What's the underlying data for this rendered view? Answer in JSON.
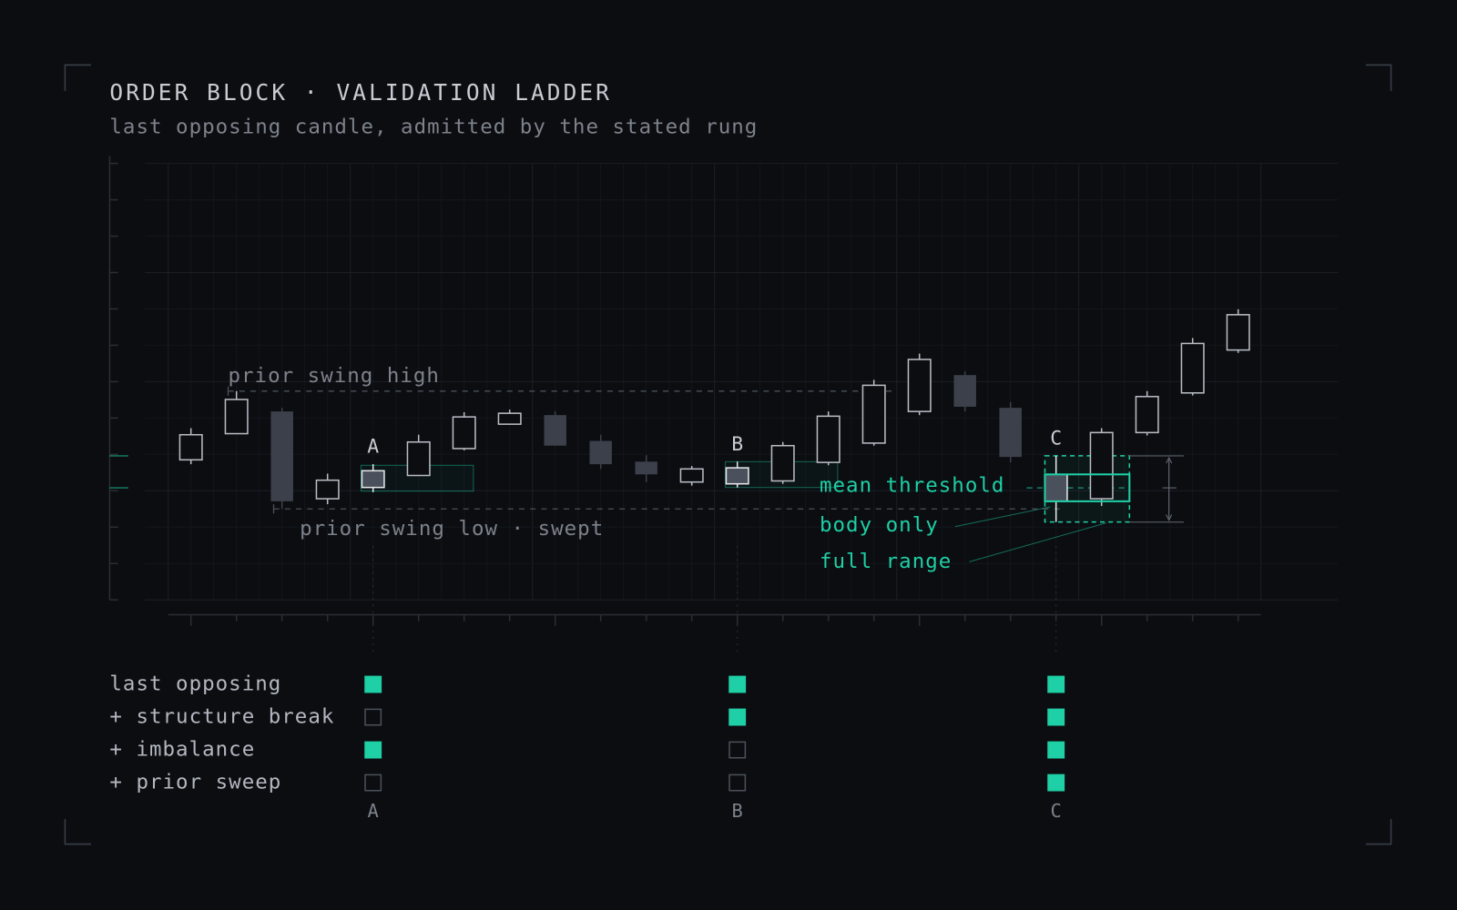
{
  "chart_data": {
    "type": "candlestick",
    "title": "ORDER BLOCK · VALIDATION LADDER",
    "subtitle": "last opposing candle, admitted by the stated rung",
    "categories": [
      null,
      null,
      null,
      null,
      "A",
      null,
      null,
      null,
      null,
      null,
      null,
      null,
      "B",
      null,
      null,
      null,
      null,
      null,
      null,
      "C",
      null,
      null,
      null,
      null
    ],
    "open": [
      3.85,
      4.57,
      5.18,
      2.78,
      3.55,
      3.42,
      4.16,
      4.83,
      5.08,
      4.37,
      3.8,
      3.24,
      3.63,
      3.27,
      3.78,
      4.31,
      5.18,
      6.18,
      5.28,
      3.45,
      2.78,
      4.6,
      5.69,
      6.87
    ],
    "high": [
      4.72,
      5.74,
      5.28,
      3.47,
      3.73,
      4.54,
      5.16,
      5.23,
      5.18,
      4.54,
      3.98,
      3.68,
      3.8,
      4.34,
      5.18,
      6.05,
      6.77,
      6.28,
      5.44,
      3.96,
      4.72,
      5.74,
      7.2,
      7.99
    ],
    "low": [
      3.73,
      4.57,
      2.5,
      2.63,
      2.96,
      3.42,
      4.11,
      4.83,
      4.24,
      3.6,
      3.24,
      3.14,
      3.09,
      3.19,
      3.7,
      4.24,
      5.08,
      5.18,
      3.78,
      2.14,
      2.58,
      4.52,
      5.62,
      6.79
    ],
    "close": [
      4.54,
      5.51,
      2.71,
      3.29,
      3.09,
      4.34,
      5.03,
      5.13,
      4.24,
      3.73,
      3.45,
      3.6,
      3.19,
      4.24,
      5.05,
      5.9,
      6.61,
      5.31,
      3.93,
      2.71,
      4.6,
      5.59,
      7.05,
      7.84
    ],
    "ylim": [
      0,
      12
    ],
    "yticks": [
      0,
      1,
      2,
      3,
      4,
      5,
      6,
      7,
      8,
      9,
      10,
      11,
      12
    ],
    "grid": true,
    "up_color": "#b9bcc4",
    "down_color": "#3b404b",
    "accent_color": "#1fcfa5",
    "levels": [
      {
        "label": "prior swing high",
        "value": 5.74,
        "from": 1,
        "to": 16
      },
      {
        "label": "prior swing low · swept",
        "value": 2.5,
        "from": 2,
        "to": 19
      }
    ],
    "zones": [
      {
        "from": 4,
        "to": 6,
        "top": 3.7,
        "bottom": 2.99
      },
      {
        "from": 12,
        "to": 14,
        "top": 3.8,
        "bottom": 3.09
      }
    ],
    "annotations": [
      "mean threshold",
      "body only",
      "full range"
    ],
    "ladder": {
      "rows": [
        "last opposing",
        "+ structure break",
        "+ imbalance",
        "+ prior sweep"
      ],
      "columns": [
        {
          "label": "A",
          "checks": [
            true,
            false,
            true,
            false
          ]
        },
        {
          "label": "B",
          "checks": [
            true,
            true,
            false,
            false
          ]
        },
        {
          "label": "C",
          "checks": [
            true,
            true,
            true,
            true
          ]
        }
      ]
    }
  }
}
